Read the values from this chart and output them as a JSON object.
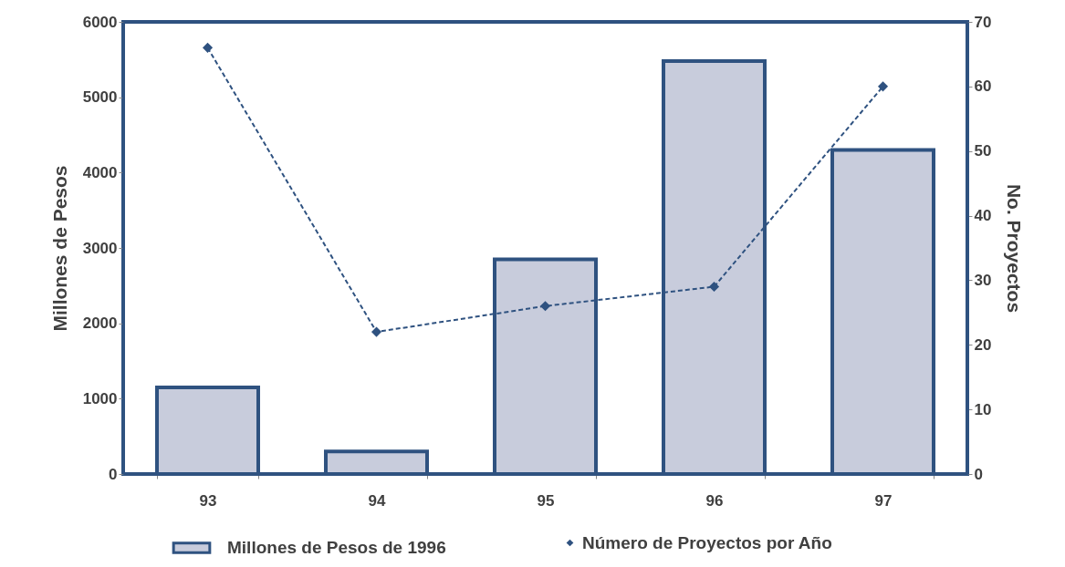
{
  "chart_data": {
    "type": "bar",
    "categories": [
      "93",
      "94",
      "95",
      "96",
      "97"
    ],
    "ylabel": "Millones de Pesos",
    "y2label": "No. Proyectos",
    "ylim": [
      0,
      6000
    ],
    "yticks": [
      0,
      1000,
      2000,
      3000,
      4000,
      5000,
      6000
    ],
    "y2lim": [
      0,
      70
    ],
    "y2ticks": [
      0,
      10,
      20,
      30,
      40,
      50,
      60,
      70
    ],
    "legend": "bottom",
    "marker": "diamond",
    "line_style": "dashed",
    "series": [
      {
        "name": "Millones de Pesos de 1996",
        "color": "#c8ccdc",
        "values": [
          1150,
          300,
          2850,
          5480,
          4300
        ]
      },
      {
        "name": "Número de Proyectos por Año",
        "type": "line",
        "axis": "y2",
        "color": "#2f5280",
        "values": [
          66,
          22,
          26,
          29,
          60
        ]
      }
    ]
  }
}
